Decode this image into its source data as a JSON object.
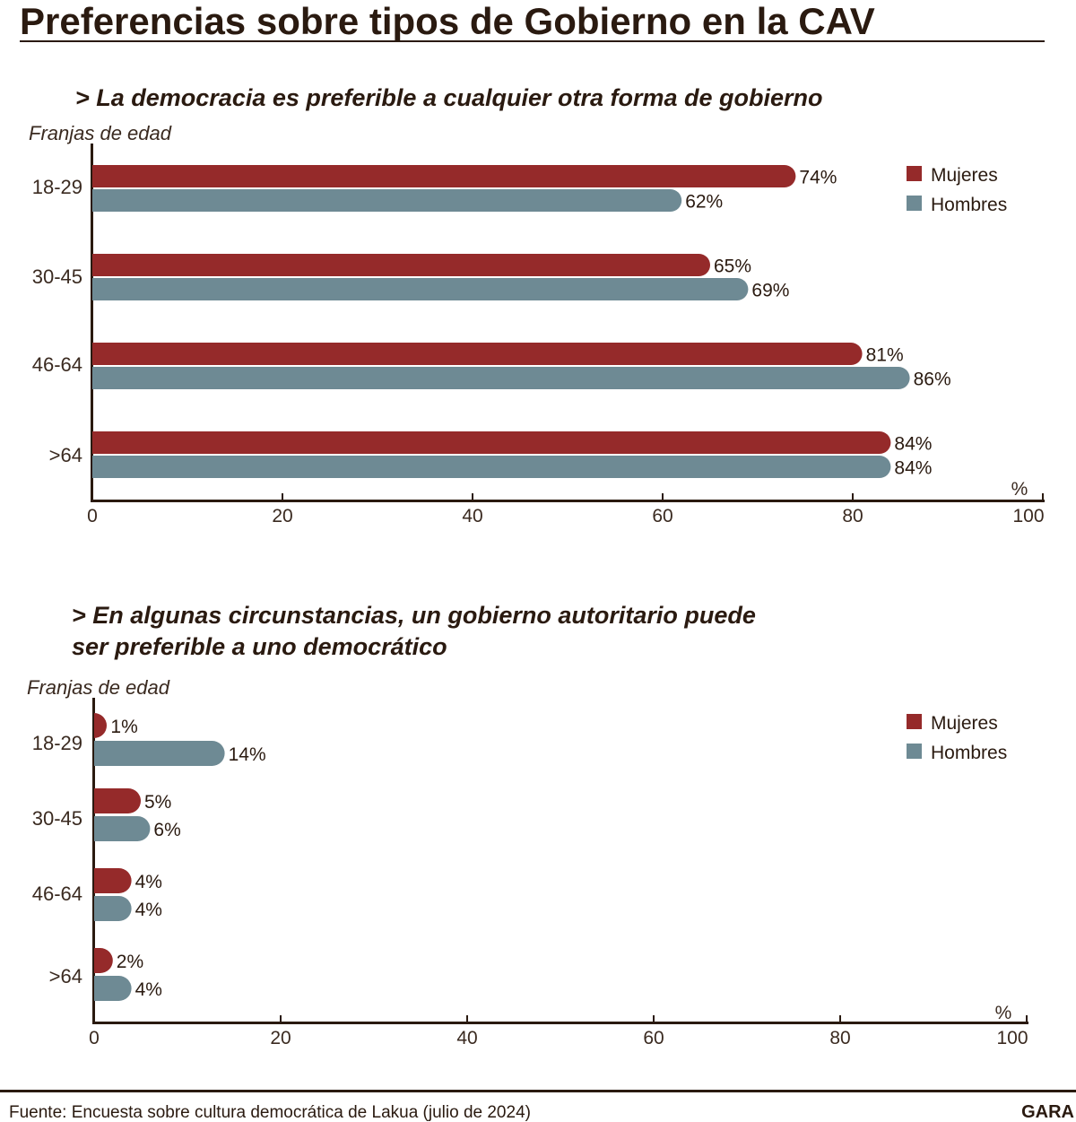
{
  "title": "Preferencias sobre tipos de Gobierno en la CAV",
  "source": "Fuente: Encuesta sobre cultura democrática de Lakua (julio de 2024)",
  "logo": "GARA",
  "colors": {
    "Mujeres": "#952a2a",
    "Hombres": "#6e8a94",
    "text": "#2a1a10"
  },
  "chart_data": [
    {
      "type": "bar",
      "title": "> La democracia es preferible a cualquier otra forma de gobierno",
      "title_lines": [
        "> La democracia es preferible a cualquier otra forma de gobierno"
      ],
      "ylabel": "Franjas de edad",
      "xlabel": "%",
      "xlim": [
        0,
        100
      ],
      "xticks": [
        "0",
        "20",
        "40",
        "60",
        "80",
        "100"
      ],
      "categories": [
        "18-29",
        "30-45",
        "46-64",
        ">64"
      ],
      "legend_position": "top-right",
      "series": [
        {
          "name": "Mujeres",
          "values": [
            74,
            65,
            81,
            84
          ],
          "labels": [
            "74%",
            "65%",
            "81%",
            "84%"
          ]
        },
        {
          "name": "Hombres",
          "values": [
            62,
            69,
            86,
            84
          ],
          "labels": [
            "62%",
            "69%",
            "86%",
            "84%"
          ]
        }
      ]
    },
    {
      "type": "bar",
      "title": "> En algunas circunstancias, un gobierno autoritario puede ser preferible a uno democrático",
      "title_lines": [
        "> En algunas circunstancias, un gobierno autoritario puede",
        "ser preferible a uno democrático"
      ],
      "ylabel": "Franjas de edad",
      "xlabel": "%",
      "xlim": [
        0,
        100
      ],
      "xticks": [
        "0",
        "20",
        "40",
        "60",
        "80",
        "100"
      ],
      "categories": [
        "18-29",
        "30-45",
        "46-64",
        ">64"
      ],
      "legend_position": "top-right",
      "series": [
        {
          "name": "Mujeres",
          "values": [
            1,
            5,
            4,
            2
          ],
          "labels": [
            "1%",
            "5%",
            "4%",
            "2%"
          ]
        },
        {
          "name": "Hombres",
          "values": [
            14,
            6,
            4,
            4
          ],
          "labels": [
            "14%",
            "6%",
            "4%",
            "4%"
          ]
        }
      ]
    }
  ]
}
